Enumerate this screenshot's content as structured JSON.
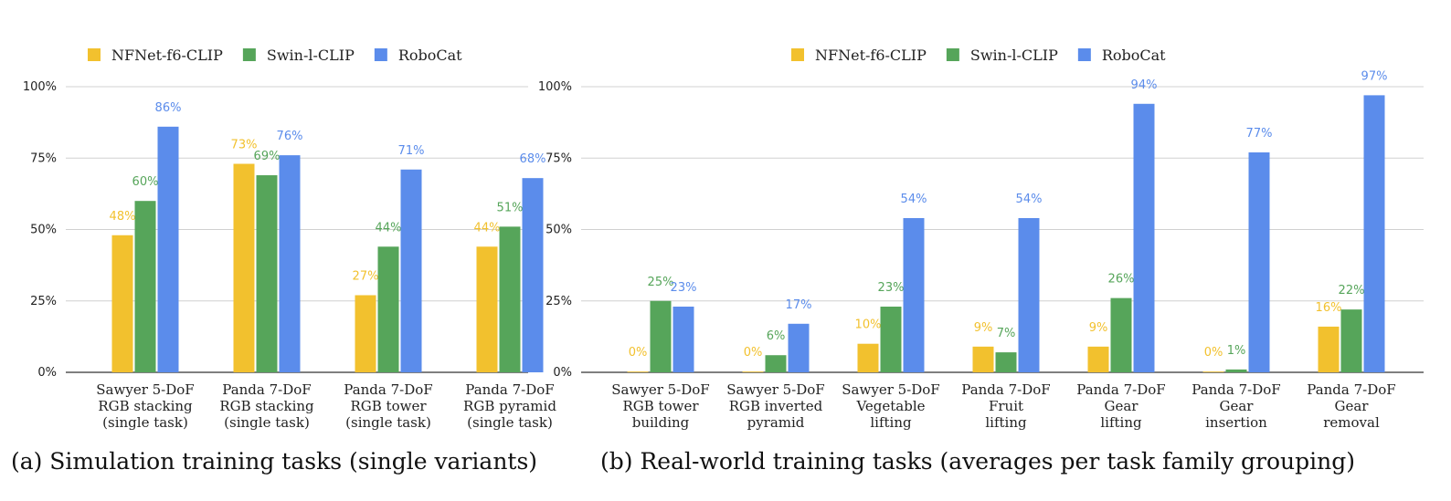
{
  "colors": {
    "NFNet-f6-CLIP": "#F2C12E",
    "Swin-l-CLIP": "#56A55A",
    "RoboCat": "#5B8CEB"
  },
  "chart_data": [
    {
      "type": "bar",
      "caption": "(a) Simulation training tasks (single variants)",
      "categories": [
        [
          "Sawyer 5-DoF",
          "RGB stacking",
          "(single task)"
        ],
        [
          "Panda 7-DoF",
          "RGB stacking",
          "(single task)"
        ],
        [
          "Panda 7-DoF",
          "RGB tower",
          "(single task)"
        ],
        [
          "Panda 7-DoF",
          "RGB pyramid",
          "(single task)"
        ]
      ],
      "series": [
        {
          "name": "NFNet-f6-CLIP",
          "values": [
            48,
            73,
            27,
            44
          ],
          "labels": [
            "48%",
            "73%",
            "27%",
            "44%"
          ]
        },
        {
          "name": "Swin-l-CLIP",
          "values": [
            60,
            69,
            44,
            51
          ],
          "labels": [
            "60%",
            "69%",
            "44%",
            "51%"
          ]
        },
        {
          "name": "RoboCat",
          "values": [
            86,
            76,
            71,
            68
          ],
          "labels": [
            "86%",
            "76%",
            "71%",
            "68%"
          ]
        }
      ],
      "yticks": [
        "0%",
        "25%",
        "50%",
        "75%",
        "100%"
      ],
      "ylim": [
        0,
        100
      ],
      "grid": true,
      "legend": "top-center"
    },
    {
      "type": "bar",
      "caption": "(b) Real-world training tasks (averages per task family grouping)",
      "categories": [
        [
          "Sawyer 5-DoF",
          "RGB tower",
          "building"
        ],
        [
          "Sawyer 5-DoF",
          "RGB inverted",
          "pyramid"
        ],
        [
          "Sawyer 5-DoF",
          "Vegetable",
          "lifting"
        ],
        [
          "Panda 7-DoF",
          "Fruit",
          "lifting"
        ],
        [
          "Panda 7-DoF",
          "Gear",
          "lifting"
        ],
        [
          "Panda 7-DoF",
          "Gear",
          "insertion"
        ],
        [
          "Panda 7-DoF",
          "Gear",
          "removal"
        ]
      ],
      "series": [
        {
          "name": "NFNet-f6-CLIP",
          "values": [
            0,
            0,
            10,
            9,
            9,
            0,
            16
          ],
          "labels": [
            "0%",
            "0%",
            "10%",
            "9%",
            "9%",
            "0%",
            "16%"
          ]
        },
        {
          "name": "Swin-l-CLIP",
          "values": [
            25,
            6,
            23,
            7,
            26,
            1,
            22
          ],
          "labels": [
            "25%",
            "6%",
            "23%",
            "7%",
            "26%",
            "1%",
            "22%"
          ]
        },
        {
          "name": "RoboCat",
          "values": [
            23,
            17,
            54,
            54,
            94,
            77,
            97
          ],
          "labels": [
            "23%",
            "17%",
            "54%",
            "54%",
            "94%",
            "77%",
            "97%"
          ]
        }
      ],
      "yticks": [
        "0%",
        "25%",
        "50%",
        "75%",
        "100%"
      ],
      "ylim": [
        0,
        100
      ],
      "grid": true,
      "legend": "top-center"
    }
  ]
}
